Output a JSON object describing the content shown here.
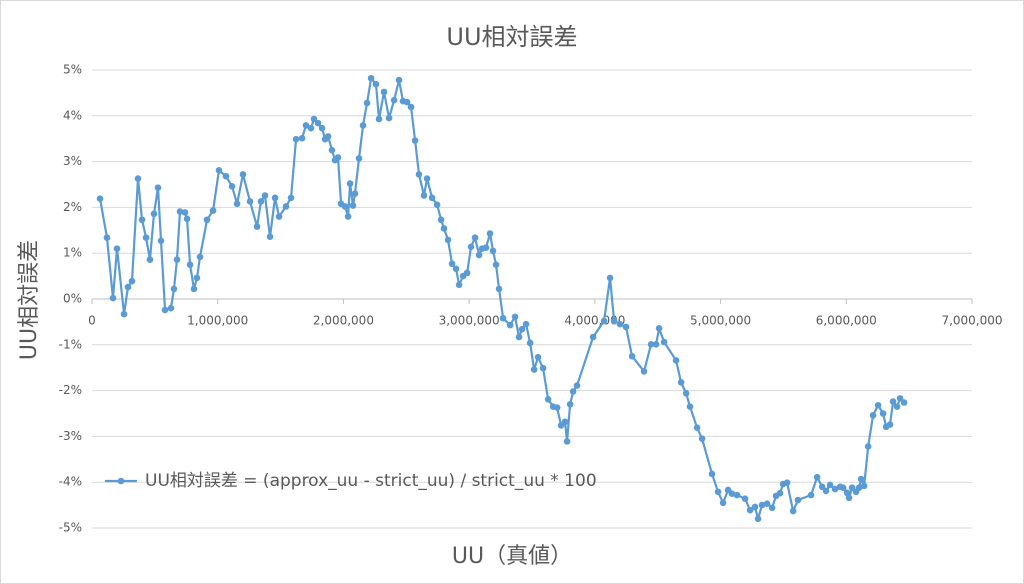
{
  "chart_data": {
    "type": "line",
    "title": "UU相対誤差",
    "x_label": "UU（真値）",
    "y_label": "UU相対誤差",
    "x": [
      64000,
      119000,
      167000,
      199000,
      255000,
      286000,
      318000,
      366000,
      398000,
      430000,
      461000,
      493000,
      525000,
      549000,
      581000,
      628000,
      652000,
      676000,
      700000,
      740000,
      756000,
      780000,
      811000,
      835000,
      859000,
      915000,
      963000,
      1010000,
      1066000,
      1114000,
      1154000,
      1201000,
      1257000,
      1313000,
      1344000,
      1376000,
      1416000,
      1456000,
      1488000,
      1543000,
      1583000,
      1623000,
      1671000,
      1702000,
      1742000,
      1766000,
      1798000,
      1830000,
      1854000,
      1878000,
      1909000,
      1933000,
      1957000,
      1981000,
      2013000,
      2037000,
      2053000,
      2076000,
      2092000,
      2124000,
      2156000,
      2188000,
      2220000,
      2259000,
      2283000,
      2323000,
      2363000,
      2403000,
      2442000,
      2474000,
      2506000,
      2538000,
      2570000,
      2601000,
      2641000,
      2665000,
      2705000,
      2745000,
      2777000,
      2800000,
      2832000,
      2864000,
      2896000,
      2920000,
      2952000,
      2984000,
      3015000,
      3047000,
      3079000,
      3103000,
      3134000,
      3166000,
      3190000,
      3214000,
      3238000,
      3270000,
      3326000,
      3365000,
      3397000,
      3421000,
      3453000,
      3485000,
      3517000,
      3548000,
      3588000,
      3628000,
      3668000,
      3700000,
      3731000,
      3763000,
      3779000,
      3803000,
      3827000,
      3858000,
      3986000,
      4073000,
      4121000,
      4153000,
      4200000,
      4248000,
      4296000,
      4391000,
      4447000,
      4487000,
      4511000,
      4551000,
      4646000,
      4686000,
      4726000,
      4757000,
      4813000,
      4853000,
      4932000,
      4980000,
      5020000,
      5060000,
      5091000,
      5131000,
      5195000,
      5235000,
      5274000,
      5298000,
      5330000,
      5370000,
      5410000,
      5441000,
      5473000,
      5497000,
      5529000,
      5577000,
      5616000,
      5720000,
      5768000,
      5808000,
      5839000,
      5871000,
      5911000,
      5951000,
      5975000,
      6006000,
      6022000,
      6046000,
      6078000,
      6102000,
      6118000,
      6142000,
      6174000,
      6213000,
      6253000,
      6293000,
      6317000,
      6348000,
      6372000,
      6404000,
      6428000,
      6460000
    ],
    "series": [
      {
        "name": "UU相対誤差 = (approx_uu - strict_uu) / strict_uu * 100",
        "color": "#5b9bd5",
        "values": [
          2.19,
          1.34,
          0.02,
          1.1,
          -0.33,
          0.26,
          0.39,
          2.63,
          1.73,
          1.34,
          0.86,
          1.86,
          2.43,
          1.27,
          -0.24,
          -0.2,
          0.22,
          0.86,
          1.91,
          1.89,
          1.75,
          0.75,
          0.22,
          0.46,
          0.92,
          1.73,
          1.93,
          2.81,
          2.68,
          2.46,
          2.08,
          2.72,
          2.13,
          1.58,
          2.13,
          2.26,
          1.36,
          2.21,
          1.8,
          2.02,
          2.21,
          3.49,
          3.51,
          3.79,
          3.73,
          3.93,
          3.84,
          3.73,
          3.49,
          3.55,
          3.25,
          3.03,
          3.09,
          2.08,
          2.02,
          1.8,
          2.52,
          2.04,
          2.3,
          3.07,
          3.79,
          4.28,
          4.82,
          4.69,
          3.93,
          4.52,
          3.95,
          4.34,
          4.78,
          4.32,
          4.3,
          4.19,
          3.46,
          2.72,
          2.26,
          2.63,
          2.21,
          2.06,
          1.73,
          1.54,
          1.29,
          0.77,
          0.66,
          0.31,
          0.5,
          0.57,
          1.14,
          1.34,
          0.96,
          1.1,
          1.12,
          1.43,
          1.05,
          0.75,
          0.22,
          -0.42,
          -0.57,
          -0.39,
          -0.83,
          -0.66,
          -0.55,
          -0.96,
          -1.54,
          -1.27,
          -1.51,
          -2.19,
          -2.35,
          -2.37,
          -2.76,
          -2.68,
          -3.11,
          -2.3,
          -2.02,
          -1.89,
          -0.83,
          -0.48,
          0.46,
          -0.48,
          -0.55,
          -0.61,
          -1.25,
          -1.58,
          -0.99,
          -0.99,
          -0.64,
          -0.94,
          -1.34,
          -1.82,
          -2.06,
          -2.35,
          -2.81,
          -3.05,
          -3.82,
          -4.21,
          -4.45,
          -4.17,
          -4.25,
          -4.28,
          -4.36,
          -4.61,
          -4.54,
          -4.8,
          -4.5,
          -4.47,
          -4.56,
          -4.3,
          -4.24,
          -4.04,
          -4.01,
          -4.63,
          -4.39,
          -4.28,
          -3.89,
          -4.1,
          -4.19,
          -4.06,
          -4.15,
          -4.1,
          -4.12,
          -4.23,
          -4.34,
          -4.12,
          -4.21,
          -4.12,
          -3.93,
          -4.08,
          -3.22,
          -2.54,
          -2.32,
          -2.5,
          -2.79,
          -2.74,
          -2.24,
          -2.35,
          -2.17,
          -2.26
        ]
      }
    ],
    "xlim": [
      0,
      7000000
    ],
    "xticks": [
      0,
      {
        "value": 1000000,
        "label": "1,000,000"
      },
      {
        "value": 2000000,
        "label": "2,000,000"
      },
      {
        "value": 3000000,
        "label": "3,000,000"
      },
      {
        "value": 4000000,
        "label": "4,000,000"
      },
      {
        "value": 5000000,
        "label": "5,000,000"
      },
      {
        "value": 6000000,
        "label": "6,000,000"
      },
      {
        "value": 7000000,
        "label": "7,000,000"
      }
    ],
    "ylim": [
      -5,
      5
    ],
    "yticks": [
      {
        "value": -5,
        "label": "-5%"
      },
      {
        "value": -4,
        "label": "-4%"
      },
      {
        "value": -3,
        "label": "-3%"
      },
      {
        "value": -2,
        "label": "-2%"
      },
      {
        "value": -1,
        "label": "-1%"
      },
      {
        "value": 0,
        "label": "0%"
      },
      {
        "value": 1,
        "label": "1%"
      },
      {
        "value": 2,
        "label": "2%"
      },
      {
        "value": 3,
        "label": "3%"
      },
      {
        "value": 4,
        "label": "4%"
      },
      {
        "value": 5,
        "label": "5%"
      }
    ],
    "grid": true,
    "legend": "lower-left"
  }
}
